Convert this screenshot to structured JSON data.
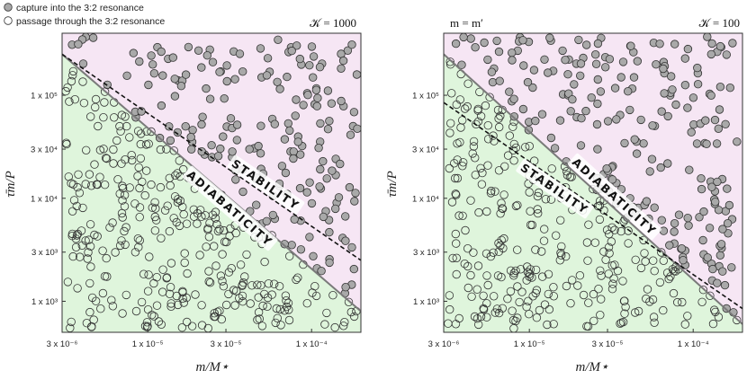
{
  "legend": {
    "capture_label": "capture into the 3:2 resonance",
    "passage_label": "passage through the 3:2 resonance"
  },
  "colors": {
    "stable_fill": "#dff5dc",
    "unstable_fill": "#f6e6f4",
    "capture_marker": "#a9a9a9",
    "frame": "#333333"
  },
  "chart_data": [
    {
      "type": "scatter",
      "panel": "left",
      "title_right": "𝒦 = 1000",
      "title_left": "",
      "xlabel": "m/M⋆",
      "ylabel": "τ̄m/P",
      "xscale": "log",
      "yscale": "log",
      "xlim": [
        3e-06,
        0.0002
      ],
      "ylim": [
        500,
        400000
      ],
      "xticks": [
        3e-06,
        1e-05,
        3e-05,
        0.0001
      ],
      "xtick_labels": [
        "3 x 10⁻⁶",
        "1 x 10⁻⁵",
        "3 x 10⁻⁵",
        "1 x 10⁻⁴"
      ],
      "yticks": [
        1000,
        3000,
        10000,
        30000,
        100000
      ],
      "ytick_labels": [
        "1 x 10³",
        "3 x 10³",
        "1 x 10⁴",
        "3 x 10⁴",
        "1 x 10⁵"
      ],
      "adiabaticity_line": {
        "x": [
          3e-06,
          0.0002
        ],
        "y": [
          250000,
          800
        ]
      },
      "stability_line": {
        "x": [
          3e-06,
          0.0002
        ],
        "y": [
          250000,
          2500
        ]
      },
      "region_labels": {
        "stability": "STABILITY",
        "adiabaticity": "ADIABATICITY"
      },
      "n_capture": 200,
      "n_passage": 330,
      "seed": 11
    },
    {
      "type": "scatter",
      "panel": "right",
      "title_right": "𝒦 = 100",
      "title_left": "m = m′",
      "xlabel": "m/M⋆",
      "ylabel": "τ̄m/P",
      "xscale": "log",
      "yscale": "log",
      "xlim": [
        3e-06,
        0.0002
      ],
      "ylim": [
        500,
        400000
      ],
      "xticks": [
        3e-06,
        1e-05,
        3e-05,
        0.0001
      ],
      "xtick_labels": [
        "3 x 10⁻⁶",
        "1 x 10⁻⁵",
        "3 x 10⁻⁵",
        "1 x 10⁻⁴"
      ],
      "yticks": [
        1000,
        3000,
        10000,
        30000,
        100000
      ],
      "ytick_labels": [
        "1 x 10³",
        "3 x 10³",
        "1 x 10⁴",
        "3 x 10⁴",
        "1 x 10⁵"
      ],
      "adiabaticity_line": {
        "x": [
          3e-06,
          0.0002
        ],
        "y": [
          250000,
          600
        ]
      },
      "stability_line": {
        "x": [
          3e-06,
          0.0002
        ],
        "y": [
          85000,
          850
        ]
      },
      "region_labels": {
        "stability": "STABILITY",
        "adiabaticity": "ADIABATICITY"
      },
      "n_capture": 230,
      "n_passage": 300,
      "seed": 29
    }
  ]
}
